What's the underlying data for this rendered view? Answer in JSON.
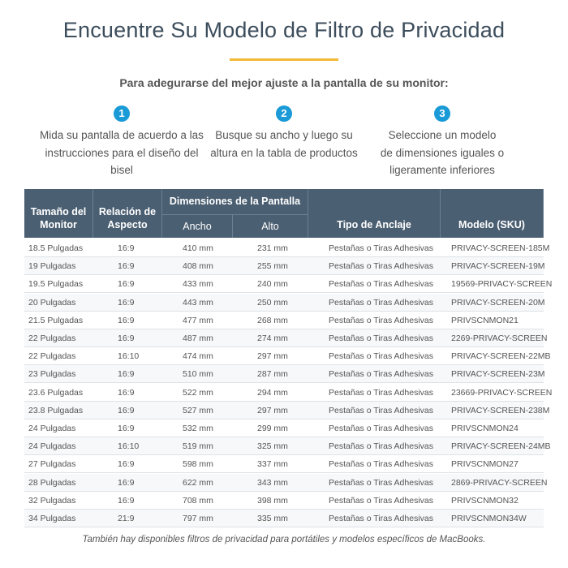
{
  "title": "Encuentre Su Modelo de Filtro de Privacidad",
  "subtitle": "Para adegurarse del mejor ajuste a la pantalla de su monitor:",
  "steps": [
    {
      "number": "1",
      "lines": [
        "Mida su pantalla de acuerdo a las",
        "instrucciones para el diseño del",
        "bisel"
      ]
    },
    {
      "number": "2",
      "lines": [
        "Busque su ancho y luego su",
        "altura en la tabla de productos"
      ]
    },
    {
      "number": "3",
      "lines": [
        "Seleccione un modelo",
        "de dimensiones iguales o",
        "ligeramente inferiores"
      ]
    }
  ],
  "table": {
    "group_header": "Dimensiones de la Pantalla",
    "headers": [
      "Tamaño del Monitor",
      "Relación de Aspecto",
      "Ancho",
      "Alto",
      "Tipo de Anclaje",
      "Modelo (SKU)"
    ],
    "rows": [
      [
        "18.5 Pulgadas",
        "16:9",
        "410 mm",
        "231 mm",
        "Pestañas o Tiras Adhesivas",
        "PRIVACY-SCREEN-185M"
      ],
      [
        "19 Pulgadas",
        "16:9",
        "408 mm",
        "255 mm",
        "Pestañas o Tiras Adhesivas",
        "PRIVACY-SCREEN-19M"
      ],
      [
        "19.5 Pulgadas",
        "16:9",
        "433 mm",
        "240 mm",
        "Pestañas o Tiras Adhesivas",
        "19569-PRIVACY-SCREEN"
      ],
      [
        "20 Pulgadas",
        "16:9",
        "443 mm",
        "250 mm",
        "Pestañas o Tiras Adhesivas",
        "PRIVACY-SCREEN-20M"
      ],
      [
        "21.5 Pulgadas",
        "16:9",
        "477 mm",
        "268 mm",
        "Pestañas o Tiras Adhesivas",
        "PRIVSCNMON21"
      ],
      [
        "22 Pulgadas",
        "16:9",
        "487 mm",
        "274 mm",
        "Pestañas o Tiras Adhesivas",
        "2269-PRIVACY-SCREEN"
      ],
      [
        "22 Pulgadas",
        "16:10",
        "474 mm",
        "297 mm",
        "Pestañas o Tiras Adhesivas",
        "PRIVACY-SCREEN-22MB"
      ],
      [
        "23 Pulgadas",
        "16:9",
        "510 mm",
        "287 mm",
        "Pestañas o Tiras Adhesivas",
        "PRIVACY-SCREEN-23M"
      ],
      [
        "23.6 Pulgadas",
        "16:9",
        "522 mm",
        "294 mm",
        "Pestañas o Tiras Adhesivas",
        "23669-PRIVACY-SCREEN"
      ],
      [
        "23.8 Pulgadas",
        "16:9",
        "527 mm",
        "297 mm",
        "Pestañas o Tiras Adhesivas",
        "PRIVACY-SCREEN-238M"
      ],
      [
        "24 Pulgadas",
        "16:9",
        "532 mm",
        "299 mm",
        "Pestañas o Tiras Adhesivas",
        "PRIVSCNMON24"
      ],
      [
        "24 Pulgadas",
        "16:10",
        "519 mm",
        "325 mm",
        "Pestañas o Tiras Adhesivas",
        "PRIVACY-SCREEN-24MB"
      ],
      [
        "27 Pulgadas",
        "16:9",
        "598 mm",
        "337 mm",
        "Pestañas o Tiras Adhesivas",
        "PRIVSCNMON27"
      ],
      [
        "28 Pulgadas",
        "16:9",
        "622 mm",
        "343 mm",
        "Pestañas o Tiras Adhesivas",
        "2869-PRIVACY-SCREEN"
      ],
      [
        "32 Pulgadas",
        "16:9",
        "708 mm",
        "398 mm",
        "Pestañas o Tiras Adhesivas",
        "PRIVSCNMON32"
      ],
      [
        "34 Pulgadas",
        "21:9",
        "797 mm",
        "335 mm",
        "Pestañas o Tiras Adhesivas",
        "PRIVSCNMON34W"
      ]
    ]
  },
  "note": "También hay disponibles filtros de privacidad para portátiles y modelos específicos de MacBooks."
}
